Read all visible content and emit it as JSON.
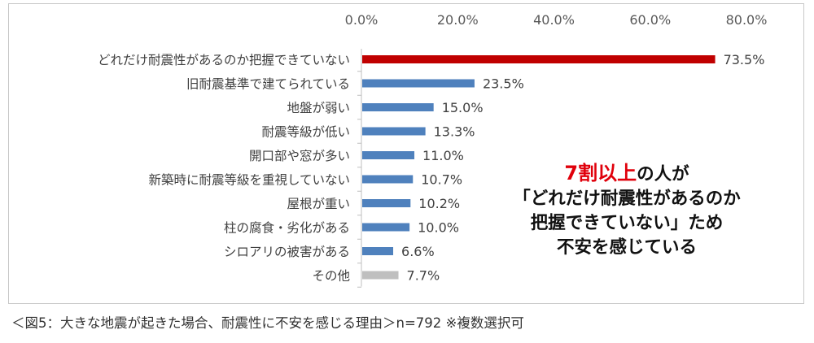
{
  "chart_data": {
    "type": "bar",
    "orientation": "horizontal",
    "categories": [
      "どれだけ耐震性があるのか把握できていない",
      "旧耐震基準で建てられている",
      "地盤が弱い",
      "耐震等級が低い",
      "開口部や窓が多い",
      "新築時に耐震等級を重視していない",
      "屋根が重い",
      "柱の腐食・劣化がある",
      "シロアリの被害がある",
      "その他"
    ],
    "values": [
      73.5,
      23.5,
      15.0,
      13.3,
      11.0,
      10.7,
      10.2,
      10.0,
      6.6,
      7.7
    ],
    "value_labels": [
      "73.5%",
      "23.5%",
      "15.0%",
      "13.3%",
      "11.0%",
      "10.7%",
      "10.2%",
      "10.0%",
      "6.6%",
      "7.7%"
    ],
    "bar_colors": [
      "#c00000",
      "#4f81bd",
      "#4f81bd",
      "#4f81bd",
      "#4f81bd",
      "#4f81bd",
      "#4f81bd",
      "#4f81bd",
      "#4f81bd",
      "#bfbfbf"
    ],
    "xlim": [
      0,
      80
    ],
    "x_ticks": [
      0,
      20,
      40,
      60,
      80
    ],
    "x_tick_labels": [
      "0.0%",
      "20.0%",
      "40.0%",
      "60.0%",
      "80.0%"
    ],
    "axis_position": "top",
    "grid": false,
    "title": "",
    "xlabel": "",
    "ylabel": ""
  },
  "callout": {
    "line1_highlight": "7割以上",
    "line1_rest": "の人が",
    "line2": "「どれだけ耐震性があるのか",
    "line3": "把握できていない」ため",
    "line4": "不安を感じている",
    "highlight_color": "#e0000b"
  },
  "caption": "＜図5：大きな地震が起きた場合、耐震性に不安を感じる理由＞n=792 ※複数選択可"
}
